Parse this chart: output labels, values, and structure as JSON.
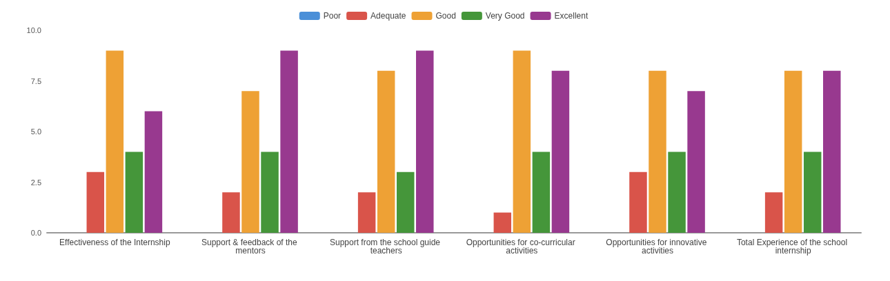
{
  "chart_data": {
    "type": "bar",
    "categories": [
      "Effectiveness of the Internship",
      "Support & feedback of the mentors",
      "Support from the school guide teachers",
      "Opportunities for co-curricular activities",
      "Opportunities for innovative activities",
      "Total Experience of the school internship"
    ],
    "series": [
      {
        "name": "Poor",
        "color": "#4a8fd8",
        "values": [
          0,
          0,
          0,
          0,
          0,
          0
        ]
      },
      {
        "name": "Adequate",
        "color": "#d9544a",
        "values": [
          3,
          2,
          2,
          1,
          3,
          2
        ]
      },
      {
        "name": "Good",
        "color": "#eea135",
        "values": [
          9,
          7,
          8,
          9,
          8,
          8
        ]
      },
      {
        "name": "Very Good",
        "color": "#45963a",
        "values": [
          4,
          4,
          3,
          4,
          4,
          4
        ]
      },
      {
        "name": "Excellent",
        "color": "#98398f",
        "values": [
          6,
          9,
          9,
          8,
          7,
          8
        ]
      }
    ],
    "ylim": [
      0,
      10
    ],
    "yticks": [
      {
        "value": 0,
        "label": "0.0"
      },
      {
        "value": 2.5,
        "label": "2.5"
      },
      {
        "value": 5,
        "label": "5.0"
      },
      {
        "value": 7.5,
        "label": "7.5"
      },
      {
        "value": 10,
        "label": "10.0"
      }
    ],
    "grid": false,
    "legend": "top"
  }
}
